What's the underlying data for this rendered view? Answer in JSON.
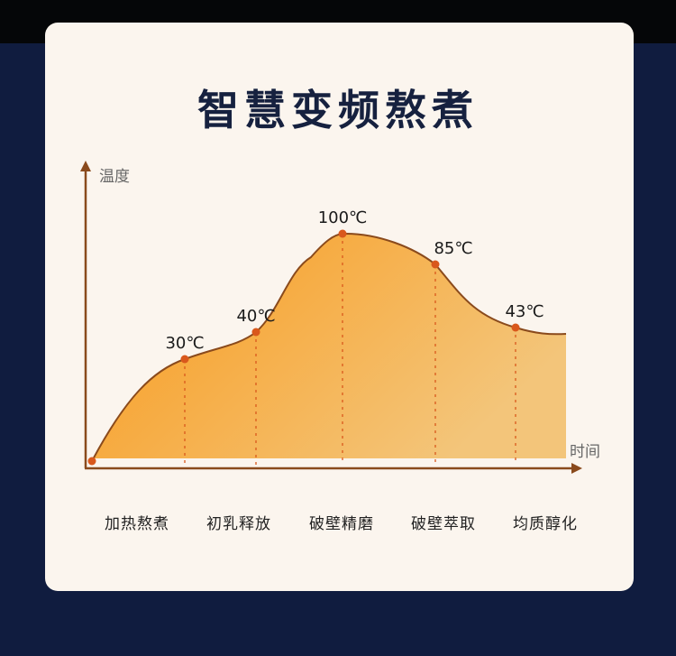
{
  "title": "智慧变频熬煮",
  "chart_data": {
    "type": "area",
    "ylabel": "温度",
    "xlabel": "时间",
    "points": [
      {
        "label": "30℃",
        "value": 30,
        "stage": "加热熬煮"
      },
      {
        "label": "40℃",
        "value": 40,
        "stage": "初乳释放"
      },
      {
        "label": "100℃",
        "value": 100,
        "stage": "破壁精磨"
      },
      {
        "label": "85℃",
        "value": 85,
        "stage": "破壁萃取"
      },
      {
        "label": "43℃",
        "value": 43,
        "stage": "均质醇化"
      }
    ],
    "grid": false,
    "colors": {
      "fill_start": "#f99a1c",
      "fill_end": "#f3c57a",
      "line": "#8a4a1c",
      "point": "#d9581c",
      "axis": "#8a4a1c"
    }
  }
}
